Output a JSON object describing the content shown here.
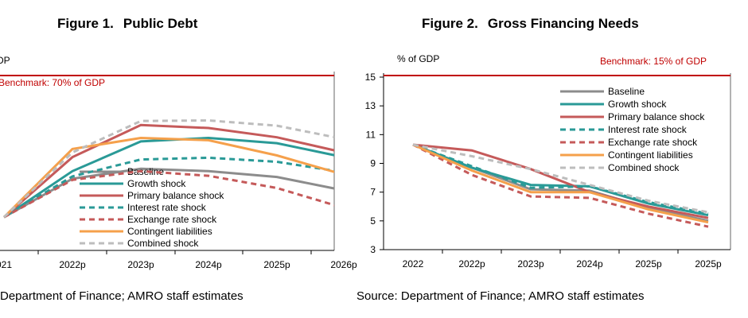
{
  "figures": [
    {
      "number": "Figure 1.",
      "title": "Public Debt",
      "source": "Department of Finance; AMRO staff estimates"
    },
    {
      "number": "Figure 2.",
      "title": "Gross Financing Needs",
      "source": "Source: Department of Finance; AMRO staff estimates"
    }
  ],
  "colors": {
    "benchmark": "#C00000",
    "Baseline": "#8C8C8C",
    "Growth shock": "#2A9A97",
    "Primary balance shock": "#C55A5A",
    "Interest rate shock": "#2A9A97",
    "Exchange rate shock": "#C55A5A",
    "Contingent liabilities": "#F5A04B",
    "Combined shock": "#BDBDBD"
  },
  "chart_data": [
    {
      "type": "line",
      "title": "Public Debt",
      "ylabel": "DP",
      "benchmark_label": "Benchmark: 70% of GDP",
      "benchmark_value": 70,
      "ylim": [
        45,
        75
      ],
      "categories": [
        "021",
        "2022p",
        "2023p",
        "2024p",
        "2025p",
        "2026p"
      ],
      "legend_location": "lower-center",
      "series": [
        {
          "name": "Baseline",
          "style": "solid",
          "values": [
            50.7,
            57.3,
            59.0,
            58.6,
            57.6,
            55.3
          ]
        },
        {
          "name": "Growth shock",
          "style": "solid",
          "values": [
            50.7,
            58.6,
            63.7,
            64.3,
            63.4,
            61.0
          ]
        },
        {
          "name": "Primary balance shock",
          "style": "solid",
          "values": [
            50.7,
            61.0,
            66.5,
            66.0,
            64.4,
            61.8
          ]
        },
        {
          "name": "Interest rate shock",
          "style": "dashed",
          "values": [
            50.7,
            57.7,
            60.6,
            60.9,
            60.2,
            58.4
          ]
        },
        {
          "name": "Exchange rate shock",
          "style": "dashed",
          "values": [
            50.7,
            57.1,
            58.6,
            57.8,
            55.7,
            52.3
          ]
        },
        {
          "name": "Contingent liabilities",
          "style": "solid",
          "values": [
            50.7,
            62.4,
            64.3,
            63.9,
            61.3,
            58.0
          ]
        },
        {
          "name": "Combined shock",
          "style": "dashed",
          "values": [
            50.7,
            61.8,
            67.2,
            67.3,
            66.4,
            64.1
          ]
        }
      ]
    },
    {
      "type": "line",
      "title": "Gross Financing Needs",
      "ylabel": "% of GDP",
      "benchmark_label": "Benchmark: 15% of GDP",
      "benchmark_value": 15,
      "ylim": [
        3,
        15
      ],
      "yticks": [
        3,
        5,
        7,
        9,
        11,
        13,
        15
      ],
      "categories": [
        "2022",
        "2022p",
        "2023p",
        "2024p",
        "2025p",
        "2025p"
      ],
      "legend_location": "top-right",
      "series": [
        {
          "name": "Baseline",
          "style": "solid",
          "values": [
            10.3,
            8.7,
            7.2,
            7.1,
            5.9,
            5.0
          ]
        },
        {
          "name": "Growth shock",
          "style": "solid",
          "values": [
            10.3,
            8.7,
            7.5,
            7.4,
            6.2,
            5.4
          ]
        },
        {
          "name": "Primary balance shock",
          "style": "solid",
          "values": [
            10.3,
            9.9,
            8.6,
            7.0,
            6.0,
            5.2
          ]
        },
        {
          "name": "Interest rate shock",
          "style": "dashed",
          "values": [
            10.3,
            8.8,
            7.3,
            7.4,
            6.3,
            5.5
          ]
        },
        {
          "name": "Exchange rate shock",
          "style": "dashed",
          "values": [
            10.3,
            8.2,
            6.7,
            6.6,
            5.5,
            4.6
          ]
        },
        {
          "name": "Contingent liabilities",
          "style": "solid",
          "values": [
            10.3,
            8.5,
            7.0,
            7.0,
            5.8,
            4.9
          ]
        },
        {
          "name": "Combined shock",
          "style": "dashed",
          "values": [
            10.3,
            9.5,
            8.6,
            7.5,
            6.4,
            5.6
          ]
        }
      ]
    }
  ]
}
